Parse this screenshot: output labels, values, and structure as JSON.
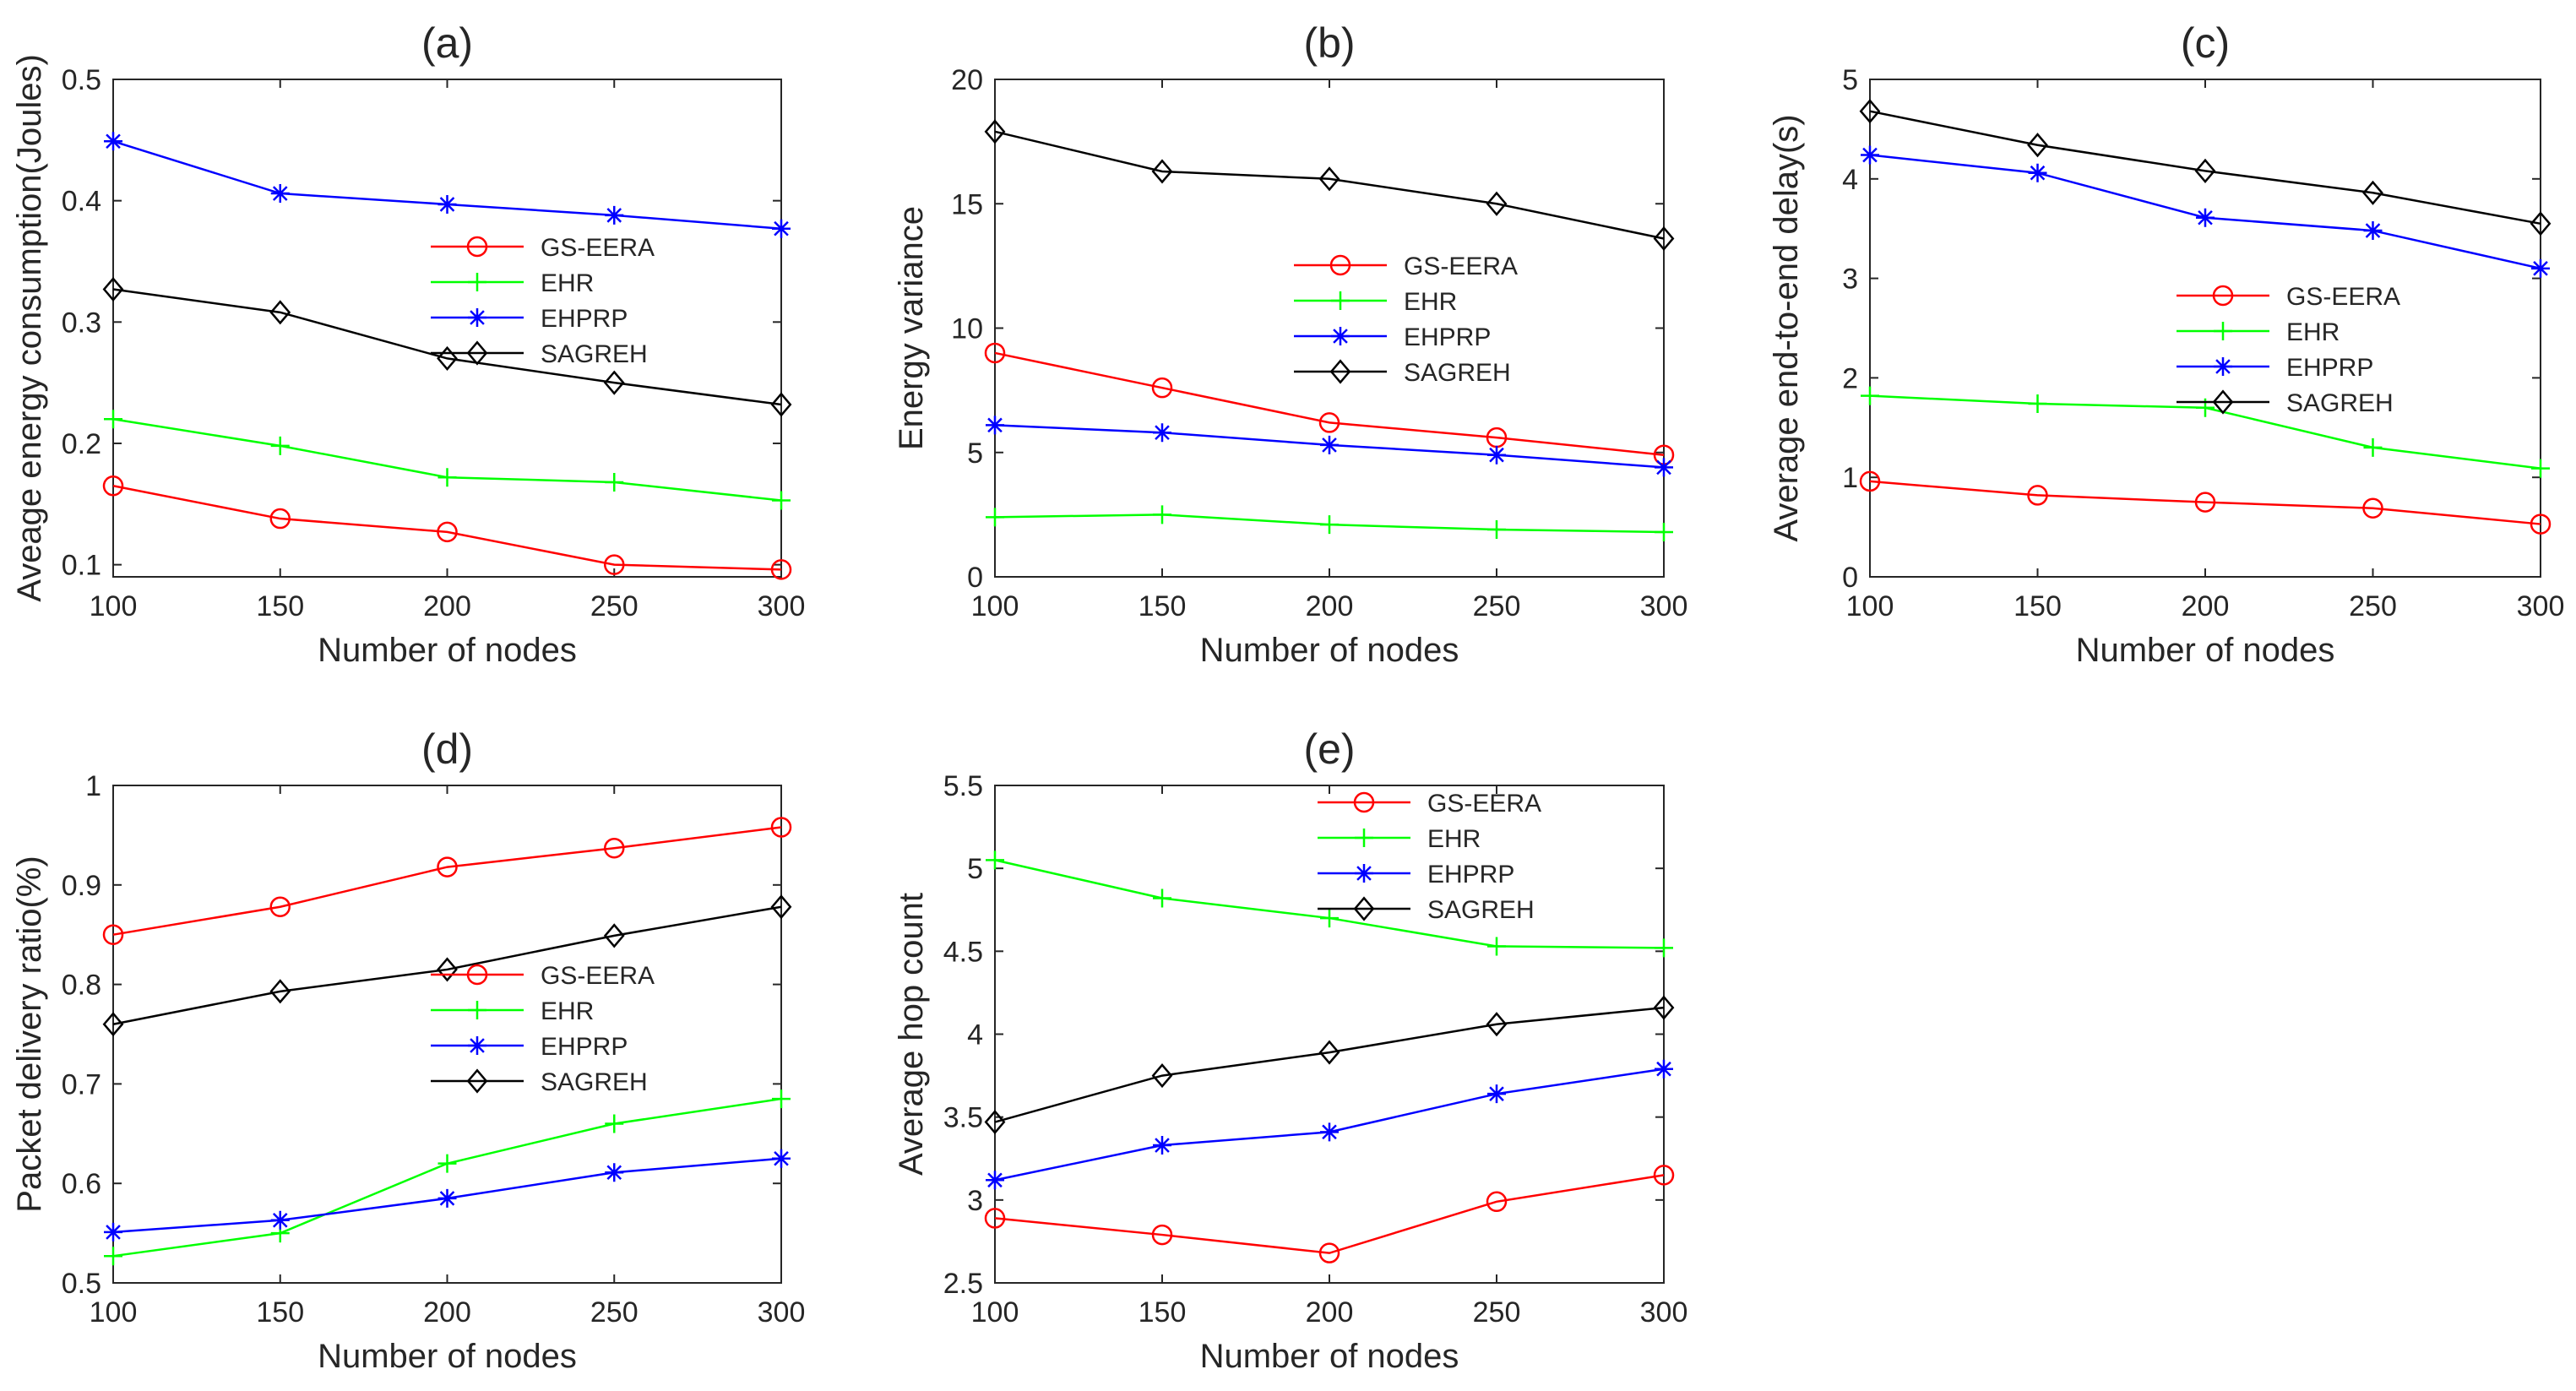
{
  "chart_data": [
    {
      "type": "line",
      "title": "(a)",
      "xlabel": "Number of nodes",
      "ylabel": "Aveage energy consumption(Joules)",
      "x": [
        100,
        150,
        200,
        250,
        300
      ],
      "xlim": [
        100,
        300
      ],
      "ylim": [
        0.09,
        0.5
      ],
      "xticks": [
        100,
        150,
        200,
        250,
        300
      ],
      "xtick_labels": [
        "100",
        "150",
        "200",
        "250",
        "300"
      ],
      "yticks": [
        0.1,
        0.2,
        0.3,
        0.4,
        0.5
      ],
      "ytick_labels": [
        "0.1",
        "0.2",
        "0.3",
        "0.4",
        "0.5"
      ],
      "grid": false,
      "legend_position": "right",
      "series": [
        {
          "name": "GS-EERA",
          "color": "#ff0000",
          "marker": "circle",
          "values": [
            0.165,
            0.138,
            0.127,
            0.1,
            0.096
          ]
        },
        {
          "name": "EHR",
          "color": "#00ff00",
          "marker": "plus",
          "values": [
            0.22,
            0.198,
            0.172,
            0.168,
            0.153
          ]
        },
        {
          "name": "EHPRP",
          "color": "#0000ff",
          "marker": "asterisk",
          "values": [
            0.449,
            0.406,
            0.397,
            0.388,
            0.377
          ]
        },
        {
          "name": "SAGREH",
          "color": "#000000",
          "marker": "diamond",
          "values": [
            0.327,
            0.308,
            0.27,
            0.25,
            0.232
          ]
        }
      ]
    },
    {
      "type": "line",
      "title": "(b)",
      "xlabel": "Number of nodes",
      "ylabel": "Energy variance",
      "x": [
        100,
        150,
        200,
        250,
        300
      ],
      "xlim": [
        100,
        300
      ],
      "ylim": [
        0,
        20
      ],
      "xticks": [
        100,
        150,
        200,
        250,
        300
      ],
      "xtick_labels": [
        "100",
        "150",
        "200",
        "250",
        "300"
      ],
      "yticks": [
        0,
        5,
        10,
        15,
        20
      ],
      "ytick_labels": [
        "0",
        "5",
        "10",
        "15",
        "20"
      ],
      "grid": false,
      "legend_position": "right",
      "series": [
        {
          "name": "GS-EERA",
          "color": "#ff0000",
          "marker": "circle",
          "values": [
            9.0,
            7.6,
            6.2,
            5.6,
            4.9
          ]
        },
        {
          "name": "EHR",
          "color": "#00ff00",
          "marker": "plus",
          "values": [
            2.4,
            2.5,
            2.1,
            1.9,
            1.8
          ]
        },
        {
          "name": "EHPRP",
          "color": "#0000ff",
          "marker": "asterisk",
          "values": [
            6.1,
            5.8,
            5.3,
            4.9,
            4.4
          ]
        },
        {
          "name": "SAGREH",
          "color": "#000000",
          "marker": "diamond",
          "values": [
            17.9,
            16.3,
            16.0,
            15.0,
            13.6
          ]
        }
      ]
    },
    {
      "type": "line",
      "title": "(c)",
      "xlabel": "Number of nodes",
      "ylabel": "Average end-to-end delay(s)",
      "x": [
        100,
        150,
        200,
        250,
        300
      ],
      "xlim": [
        100,
        300
      ],
      "ylim": [
        0,
        5
      ],
      "xticks": [
        100,
        150,
        200,
        250,
        300
      ],
      "xtick_labels": [
        "100",
        "150",
        "200",
        "250",
        "300"
      ],
      "yticks": [
        0,
        1,
        2,
        3,
        4,
        5
      ],
      "ytick_labels": [
        "0",
        "1",
        "2",
        "3",
        "4",
        "5"
      ],
      "grid": false,
      "legend_position": "right",
      "series": [
        {
          "name": "GS-EERA",
          "color": "#ff0000",
          "marker": "circle",
          "values": [
            0.96,
            0.82,
            0.75,
            0.69,
            0.53
          ]
        },
        {
          "name": "EHR",
          "color": "#00ff00",
          "marker": "plus",
          "values": [
            1.82,
            1.74,
            1.7,
            1.3,
            1.09
          ]
        },
        {
          "name": "EHPRP",
          "color": "#0000ff",
          "marker": "asterisk",
          "values": [
            4.24,
            4.06,
            3.61,
            3.48,
            3.1
          ]
        },
        {
          "name": "SAGREH",
          "color": "#000000",
          "marker": "diamond",
          "values": [
            4.68,
            4.34,
            4.08,
            3.86,
            3.55
          ]
        }
      ]
    },
    {
      "type": "line",
      "title": "(d)",
      "xlabel": "Number of nodes",
      "ylabel": "Packet delivery ratio(%)",
      "x": [
        100,
        150,
        200,
        250,
        300
      ],
      "xlim": [
        100,
        300
      ],
      "ylim": [
        0.5,
        1
      ],
      "xticks": [
        100,
        150,
        200,
        250,
        300
      ],
      "xtick_labels": [
        "100",
        "150",
        "200",
        "250",
        "300"
      ],
      "yticks": [
        0.5,
        0.6,
        0.7,
        0.8,
        0.9,
        1
      ],
      "ytick_labels": [
        "0.5",
        "0.6",
        "0.7",
        "0.8",
        "0.9",
        "1"
      ],
      "grid": false,
      "legend_position": "right",
      "series": [
        {
          "name": "GS-EERA",
          "color": "#ff0000",
          "marker": "circle",
          "values": [
            0.85,
            0.878,
            0.918,
            0.937,
            0.958
          ]
        },
        {
          "name": "EHR",
          "color": "#00ff00",
          "marker": "plus",
          "values": [
            0.527,
            0.55,
            0.62,
            0.66,
            0.685
          ]
        },
        {
          "name": "EHPRP",
          "color": "#0000ff",
          "marker": "asterisk",
          "values": [
            0.551,
            0.563,
            0.585,
            0.611,
            0.625
          ]
        },
        {
          "name": "SAGREH",
          "color": "#000000",
          "marker": "diamond",
          "values": [
            0.76,
            0.793,
            0.815,
            0.849,
            0.878
          ]
        }
      ]
    },
    {
      "type": "line",
      "title": "(e)",
      "xlabel": "Number of nodes",
      "ylabel": "Average hop count",
      "x": [
        100,
        150,
        200,
        250,
        300
      ],
      "xlim": [
        100,
        300
      ],
      "ylim": [
        2.5,
        5.5
      ],
      "xticks": [
        100,
        150,
        200,
        250,
        300
      ],
      "xtick_labels": [
        "100",
        "150",
        "200",
        "250",
        "300"
      ],
      "yticks": [
        2.5,
        3,
        3.5,
        4,
        4.5,
        5,
        5.5
      ],
      "ytick_labels": [
        "2.5",
        "3",
        "3.5",
        "4",
        "4.5",
        "5",
        "5.5"
      ],
      "grid": false,
      "legend_position": "top-right",
      "series": [
        {
          "name": "GS-EERA",
          "color": "#ff0000",
          "marker": "circle",
          "values": [
            2.89,
            2.79,
            2.68,
            2.99,
            3.15
          ]
        },
        {
          "name": "EHR",
          "color": "#00ff00",
          "marker": "plus",
          "values": [
            5.05,
            4.82,
            4.7,
            4.53,
            4.52
          ]
        },
        {
          "name": "EHPRP",
          "color": "#0000ff",
          "marker": "asterisk",
          "values": [
            3.12,
            3.33,
            3.41,
            3.64,
            3.79
          ]
        },
        {
          "name": "SAGREH",
          "color": "#000000",
          "marker": "diamond",
          "values": [
            3.47,
            3.75,
            3.89,
            4.06,
            4.16
          ]
        }
      ]
    }
  ]
}
